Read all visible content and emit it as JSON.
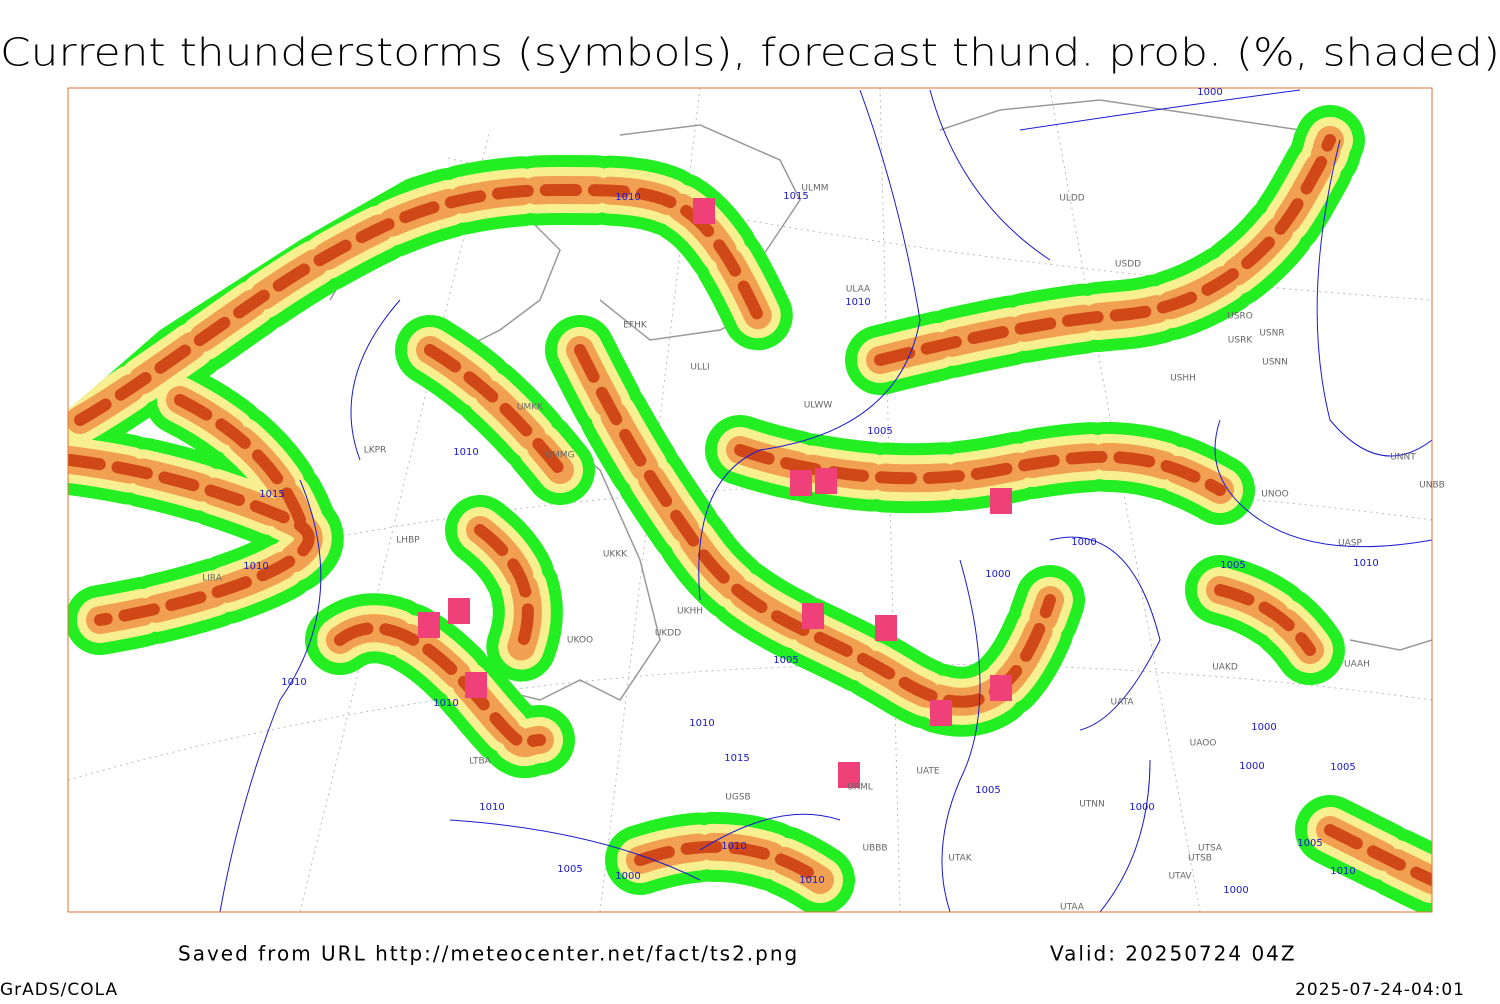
{
  "header": {
    "title": "Current thunderstorms (symbols), forecast thund. prob. (%, shaded)"
  },
  "footer": {
    "source": "Saved from URL http://meteocenter.net/fact/ts2.png",
    "valid": "Valid: 20250724 04Z",
    "software": "GrADS/COLA",
    "timestamp": "2025-07-24-04:01"
  },
  "map": {
    "stations": [
      "ULMM",
      "ULDD",
      "USDD",
      "ULAA",
      "EFHK",
      "ULLI",
      "ULWW",
      "UMKK",
      "LKPR",
      "UMMG",
      "USRK",
      "USNR",
      "USRO",
      "USNN",
      "USHH",
      "UNNT",
      "UNBB",
      "UNOO",
      "UASP",
      "UKKK",
      "LHBP",
      "LIRA",
      "UKHH",
      "UKDD",
      "UKOO",
      "UAKD",
      "UAAH",
      "UATA",
      "UAOO",
      "UATE",
      "URML",
      "UTNN",
      "UBBB",
      "UTAK",
      "UTSA",
      "UTSB",
      "UTAV",
      "UTAA",
      "LTBA",
      "UGSB"
    ],
    "isobar_labels": [
      "1000",
      "1015",
      "1010",
      "1010",
      "1005",
      "1010",
      "1015",
      "1010",
      "1000",
      "1000",
      "1005",
      "1010",
      "1005",
      "1010",
      "1010",
      "1010",
      "1015",
      "1005",
      "1000",
      "1000",
      "1005",
      "1000",
      "1010",
      "1010",
      "1005",
      "1000",
      "1010",
      "1005",
      "1010",
      "1000"
    ]
  }
}
